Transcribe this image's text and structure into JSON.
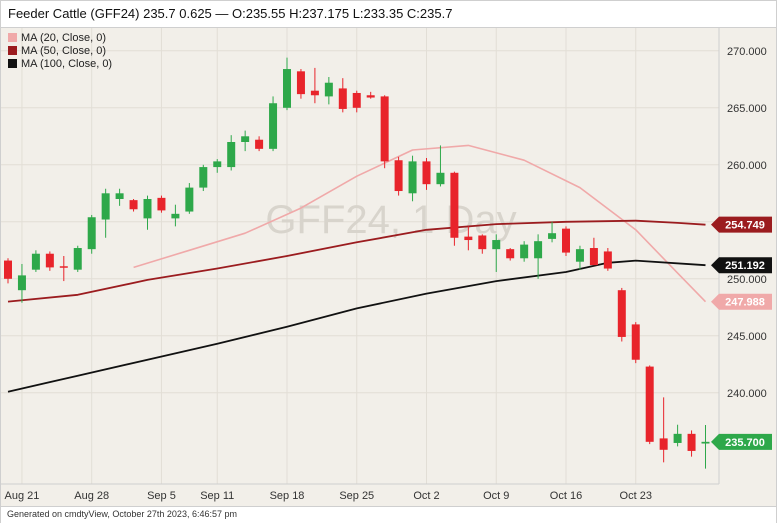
{
  "title": "Feeder Cattle (GFF24) 235.7 0.625 — O:235.55 H:237.175 L:233.35 C:235.7",
  "footer": "Generated on cmdtyView, October 27th 2023, 6:46:57 pm",
  "watermark": "GFF24, 1 Day",
  "colors": {
    "up": "#2ea84a",
    "down": "#e8242b",
    "ma20": "#f0a9a9",
    "ma50": "#9b1c1f",
    "ma100": "#111111",
    "background": "#f2efe9",
    "grid": "#e2ded6"
  },
  "legend": [
    {
      "label": "MA (20, Close, 0)",
      "color": "#f0a9a9"
    },
    {
      "label": "MA (50, Close, 0)",
      "color": "#9b1c1f"
    },
    {
      "label": "MA (100, Close, 0)",
      "color": "#111111"
    }
  ],
  "chart_data": {
    "type": "candlestick",
    "title": "Feeder Cattle (GFF24) 235.7 0.625 — O:235.55 H:237.175 L:233.35 C:235.7",
    "xlabel": "",
    "ylabel": "",
    "ylim": [
      232,
      272
    ],
    "yticks": [
      "240.000",
      "245.000",
      "250.000",
      "255.000",
      "260.000",
      "265.000",
      "270.000"
    ],
    "xticks": [
      "Aug 21",
      "Aug 28",
      "Sep 5",
      "Sep 11",
      "Sep 18",
      "Sep 25",
      "Oct 2",
      "Oct 9",
      "Oct 16",
      "Oct 23"
    ],
    "grid": true,
    "legend_position": "top-left",
    "price_tags": [
      {
        "label": "254.749",
        "value": 254.749,
        "bg": "#9b1c1f",
        "fg": "#ffffff"
      },
      {
        "label": "251.192",
        "value": 251.192,
        "bg": "#111111",
        "fg": "#ffffff"
      },
      {
        "label": "247.988",
        "value": 247.988,
        "bg": "#f0a9a9",
        "fg": "#ffffff"
      },
      {
        "label": "235.700",
        "value": 235.7,
        "bg": "#2ea84a",
        "fg": "#ffffff"
      }
    ],
    "candles": [
      {
        "x": "Aug 18",
        "o": 251.6,
        "h": 251.8,
        "l": 249.6,
        "c": 250.0
      },
      {
        "x": "Aug 21",
        "o": 249.0,
        "h": 251.3,
        "l": 247.9,
        "c": 250.3
      },
      {
        "x": "Aug 22",
        "o": 250.8,
        "h": 252.5,
        "l": 250.6,
        "c": 252.2
      },
      {
        "x": "Aug 23",
        "o": 252.2,
        "h": 252.4,
        "l": 250.7,
        "c": 251.0
      },
      {
        "x": "Aug 24",
        "o": 251.1,
        "h": 252.0,
        "l": 249.8,
        "c": 251.0
      },
      {
        "x": "Aug 25",
        "o": 250.8,
        "h": 252.9,
        "l": 250.6,
        "c": 252.7
      },
      {
        "x": "Aug 28",
        "o": 252.6,
        "h": 255.6,
        "l": 252.2,
        "c": 255.4
      },
      {
        "x": "Aug 29",
        "o": 255.2,
        "h": 257.9,
        "l": 253.6,
        "c": 257.5
      },
      {
        "x": "Aug 30",
        "o": 257.0,
        "h": 257.9,
        "l": 256.4,
        "c": 257.5
      },
      {
        "x": "Aug 31",
        "o": 256.9,
        "h": 257.0,
        "l": 255.9,
        "c": 256.1
      },
      {
        "x": "Sep 1",
        "o": 255.3,
        "h": 257.3,
        "l": 254.3,
        "c": 257.0
      },
      {
        "x": "Sep 5",
        "o": 257.1,
        "h": 257.3,
        "l": 255.8,
        "c": 256.0
      },
      {
        "x": "Sep 6",
        "o": 255.3,
        "h": 256.5,
        "l": 254.6,
        "c": 255.7
      },
      {
        "x": "Sep 7",
        "o": 255.9,
        "h": 258.4,
        "l": 255.7,
        "c": 258.0
      },
      {
        "x": "Sep 8",
        "o": 258.0,
        "h": 260.0,
        "l": 257.7,
        "c": 259.8
      },
      {
        "x": "Sep 11",
        "o": 259.8,
        "h": 260.5,
        "l": 259.3,
        "c": 260.3
      },
      {
        "x": "Sep 12",
        "o": 259.8,
        "h": 262.6,
        "l": 259.5,
        "c": 262.0
      },
      {
        "x": "Sep 13",
        "o": 262.0,
        "h": 263.0,
        "l": 261.2,
        "c": 262.5
      },
      {
        "x": "Sep 14",
        "o": 262.2,
        "h": 262.5,
        "l": 261.2,
        "c": 261.4
      },
      {
        "x": "Sep 15",
        "o": 261.4,
        "h": 266.0,
        "l": 261.2,
        "c": 265.4
      },
      {
        "x": "Sep 18",
        "o": 265.0,
        "h": 269.4,
        "l": 264.8,
        "c": 268.4
      },
      {
        "x": "Sep 19",
        "o": 268.2,
        "h": 268.4,
        "l": 265.8,
        "c": 266.2
      },
      {
        "x": "Sep 20",
        "o": 266.5,
        "h": 268.5,
        "l": 265.4,
        "c": 266.1
      },
      {
        "x": "Sep 21",
        "o": 266.0,
        "h": 267.7,
        "l": 265.3,
        "c": 267.2
      },
      {
        "x": "Sep 22",
        "o": 266.7,
        "h": 267.6,
        "l": 264.6,
        "c": 264.9
      },
      {
        "x": "Sep 25",
        "o": 266.3,
        "h": 266.5,
        "l": 264.6,
        "c": 265.0
      },
      {
        "x": "Sep 26",
        "o": 266.1,
        "h": 266.4,
        "l": 265.8,
        "c": 265.9
      },
      {
        "x": "Sep 27",
        "o": 266.0,
        "h": 266.1,
        "l": 259.7,
        "c": 260.3
      },
      {
        "x": "Sep 28",
        "o": 260.4,
        "h": 260.7,
        "l": 257.3,
        "c": 257.7
      },
      {
        "x": "Sep 29",
        "o": 257.5,
        "h": 260.8,
        "l": 256.8,
        "c": 260.3
      },
      {
        "x": "Oct 2",
        "o": 260.3,
        "h": 260.6,
        "l": 257.8,
        "c": 258.3
      },
      {
        "x": "Oct 3",
        "o": 258.3,
        "h": 261.7,
        "l": 258.1,
        "c": 259.3
      },
      {
        "x": "Oct 4",
        "o": 259.3,
        "h": 259.4,
        "l": 252.9,
        "c": 253.6
      },
      {
        "x": "Oct 5",
        "o": 253.7,
        "h": 254.6,
        "l": 252.5,
        "c": 253.4
      },
      {
        "x": "Oct 6",
        "o": 253.8,
        "h": 253.9,
        "l": 252.2,
        "c": 252.6
      },
      {
        "x": "Oct 9",
        "o": 252.6,
        "h": 253.9,
        "l": 250.6,
        "c": 253.4
      },
      {
        "x": "Oct 10",
        "o": 252.6,
        "h": 252.7,
        "l": 251.6,
        "c": 251.8
      },
      {
        "x": "Oct 11",
        "o": 251.8,
        "h": 253.3,
        "l": 251.5,
        "c": 253.0
      },
      {
        "x": "Oct 12",
        "o": 251.8,
        "h": 253.9,
        "l": 250.0,
        "c": 253.3
      },
      {
        "x": "Oct 13",
        "o": 253.5,
        "h": 255.0,
        "l": 253.2,
        "c": 254.0
      },
      {
        "x": "Oct 16",
        "o": 254.4,
        "h": 254.6,
        "l": 252.0,
        "c": 252.3
      },
      {
        "x": "Oct 17",
        "o": 251.5,
        "h": 252.9,
        "l": 250.8,
        "c": 252.6
      },
      {
        "x": "Oct 18",
        "o": 252.7,
        "h": 253.6,
        "l": 251.2,
        "c": 251.2
      },
      {
        "x": "Oct 19",
        "o": 252.4,
        "h": 252.7,
        "l": 250.7,
        "c": 250.9
      },
      {
        "x": "Oct 20",
        "o": 249.0,
        "h": 249.2,
        "l": 244.5,
        "c": 244.9
      },
      {
        "x": "Oct 23",
        "o": 246.0,
        "h": 246.2,
        "l": 242.6,
        "c": 242.9
      },
      {
        "x": "Oct 24",
        "o": 242.3,
        "h": 242.4,
        "l": 235.5,
        "c": 235.7
      },
      {
        "x": "Oct 25",
        "o": 236.0,
        "h": 239.6,
        "l": 233.9,
        "c": 235.0
      },
      {
        "x": "Oct 26",
        "o": 235.6,
        "h": 237.2,
        "l": 235.3,
        "c": 236.4
      },
      {
        "x": "Oct 26b",
        "o": 236.4,
        "h": 236.7,
        "l": 234.4,
        "c": 234.9
      },
      {
        "x": "Oct 27",
        "o": 235.55,
        "h": 237.175,
        "l": 233.35,
        "c": 235.7
      }
    ],
    "series": [
      {
        "name": "MA (20, Close, 0)",
        "color": "#f0a9a9",
        "values": [
          [
            0,
            null
          ],
          [
            9,
            251.0
          ],
          [
            13,
            252.5
          ],
          [
            17,
            254.0
          ],
          [
            21,
            256.2
          ],
          [
            25,
            259.0
          ],
          [
            29,
            261.3
          ],
          [
            33,
            261.7
          ],
          [
            37,
            260.4
          ],
          [
            41,
            258.0
          ],
          [
            45,
            254.3
          ],
          [
            48,
            250.5
          ],
          [
            50,
            247.988
          ]
        ]
      },
      {
        "name": "MA (50, Close, 0)",
        "color": "#9b1c1f",
        "values": [
          [
            0,
            248.0
          ],
          [
            5,
            248.6
          ],
          [
            10,
            249.9
          ],
          [
            15,
            250.9
          ],
          [
            20,
            252.0
          ],
          [
            25,
            253.2
          ],
          [
            30,
            254.3
          ],
          [
            35,
            254.8
          ],
          [
            40,
            255.0
          ],
          [
            45,
            255.1
          ],
          [
            48,
            254.9
          ],
          [
            50,
            254.749
          ]
        ]
      },
      {
        "name": "MA (100, Close, 0)",
        "color": "#111111",
        "values": [
          [
            0,
            240.1
          ],
          [
            5,
            241.5
          ],
          [
            10,
            242.9
          ],
          [
            15,
            244.3
          ],
          [
            20,
            245.8
          ],
          [
            25,
            247.4
          ],
          [
            30,
            248.7
          ],
          [
            35,
            249.8
          ],
          [
            40,
            250.6
          ],
          [
            43,
            251.4
          ],
          [
            45,
            251.6
          ],
          [
            50,
            251.192
          ]
        ]
      }
    ]
  }
}
